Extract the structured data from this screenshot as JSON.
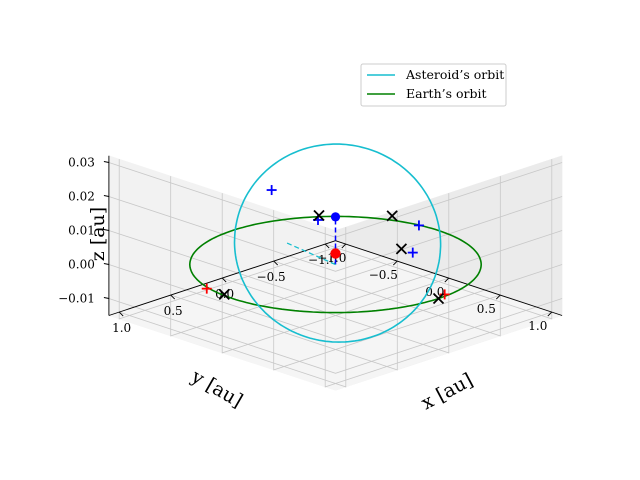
{
  "chart_data": {
    "type": "line3d",
    "axes": {
      "xlabel": "x [au]",
      "ylabel": "y [au]",
      "zlabel": "z [au]",
      "x_ticks": [
        "−1.0",
        "−0.5",
        "0.0",
        "0.5",
        "1.0"
      ],
      "y_ticks": [
        "−1.0",
        "−0.5",
        "0.0",
        "0.5",
        "1.0"
      ],
      "z_ticks": [
        "−0.01",
        "0.00",
        "0.01",
        "0.02",
        "0.03"
      ],
      "xlim": [
        -1.1,
        1.1
      ],
      "ylim": [
        -1.1,
        1.1
      ],
      "zlim": [
        -0.015,
        0.032
      ],
      "grid": true,
      "view": {
        "elev": 20,
        "azim": -135
      }
    },
    "legend": {
      "placement": "top-right",
      "entries": [
        {
          "label": "Asteroid’s orbit",
          "color": "#17becf"
        },
        {
          "label": "Earth’s orbit",
          "color": "#008000"
        }
      ]
    },
    "series": [
      {
        "name": "Asteroid’s orbit",
        "kind": "ellipse3d",
        "color": "#17becf",
        "center": [
          0.02,
          0.0,
          0.0065
        ],
        "a": [
          0.55,
          -0.45,
          0.0
        ],
        "b": [
          -0.17,
          -0.19,
          0.0255
        ]
      },
      {
        "name": "Earth’s orbit",
        "kind": "circle",
        "color": "#008000",
        "center": [
          0,
          0,
          0
        ],
        "radius": 1.0
      }
    ],
    "sun": {
      "position": [
        0,
        0,
        0
      ],
      "color": "#ff0000"
    },
    "earth_marker": {
      "position": [
        -0.7,
        -0.7,
        0
      ],
      "color": "#0000ff"
    },
    "connector": {
      "from": [
        0,
        0,
        0
      ],
      "to": [
        -0.7,
        -0.7,
        0
      ],
      "color": "#0000ff",
      "style": "dashed"
    },
    "asteroid_connector": {
      "from": [
        0,
        0,
        0
      ],
      "to": [
        -0.25,
        0.22,
        0.006
      ],
      "color": "#17becf",
      "style": "dashed"
    },
    "x_markers": [
      [
        -0.44,
        -0.99,
        0
      ],
      [
        -0.8,
        -0.64,
        0
      ],
      [
        1.0,
        0.0,
        0
      ],
      [
        -0.1,
        0.98,
        0
      ],
      [
        0.09,
        -0.55,
        0
      ]
    ],
    "plus_markers_blue": [
      [
        -0.17,
        -0.98,
        0
      ],
      [
        -0.74,
        -0.57,
        0
      ],
      [
        0.2,
        -0.55,
        0
      ],
      [
        -0.38,
        0.24,
        0.0205
      ]
    ],
    "plus_markers_red": [
      [
        0.97,
        -0.09,
        0
      ],
      [
        -0.27,
        0.98,
        0
      ]
    ]
  }
}
